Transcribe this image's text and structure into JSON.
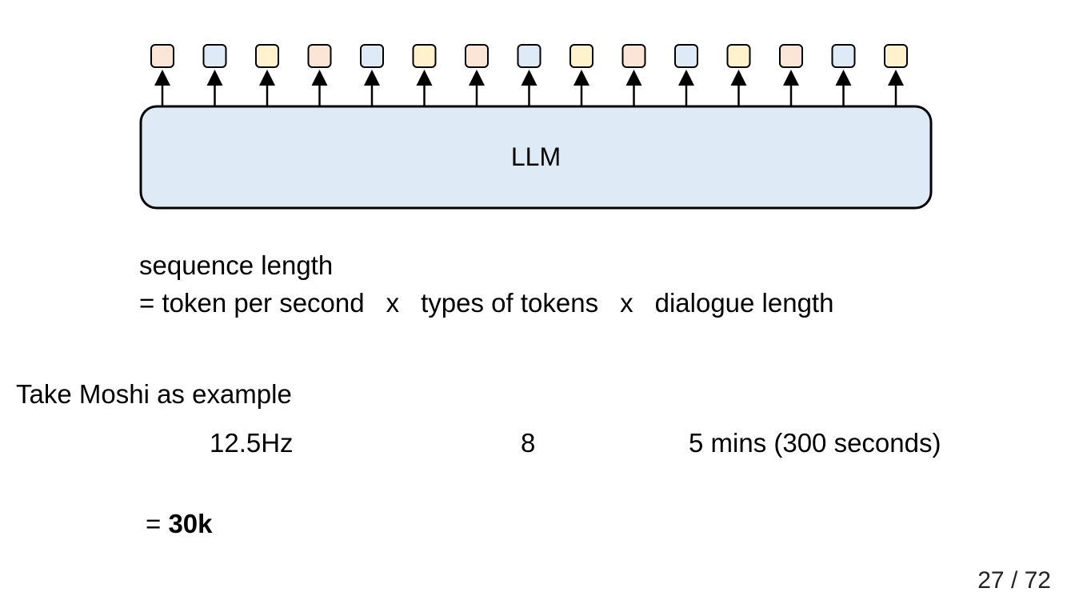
{
  "diagram": {
    "llm_label": "LLM",
    "token_colors": [
      "#fbe5d6",
      "#deebf7",
      "#fff2cc",
      "#fbe5d6",
      "#deebf7",
      "#fff2cc",
      "#fbe5d6",
      "#deebf7",
      "#fff2cc",
      "#fbe5d6",
      "#deebf7",
      "#fff2cc",
      "#fbe5d6",
      "#deebf7",
      "#fff2cc"
    ],
    "llm_fill": "#deebf7"
  },
  "formula": {
    "title": "sequence length",
    "prefix": "= token per second",
    "op1": "x",
    "term2": "types of tokens",
    "op2": "x",
    "term3": "dialogue length"
  },
  "example": {
    "title": "Take Moshi as example",
    "rate": "12.5Hz",
    "types": "8",
    "length": "5 mins (300 seconds)",
    "result_prefix": "= ",
    "result_value": "30k"
  },
  "page": {
    "number": "27 / 72"
  }
}
